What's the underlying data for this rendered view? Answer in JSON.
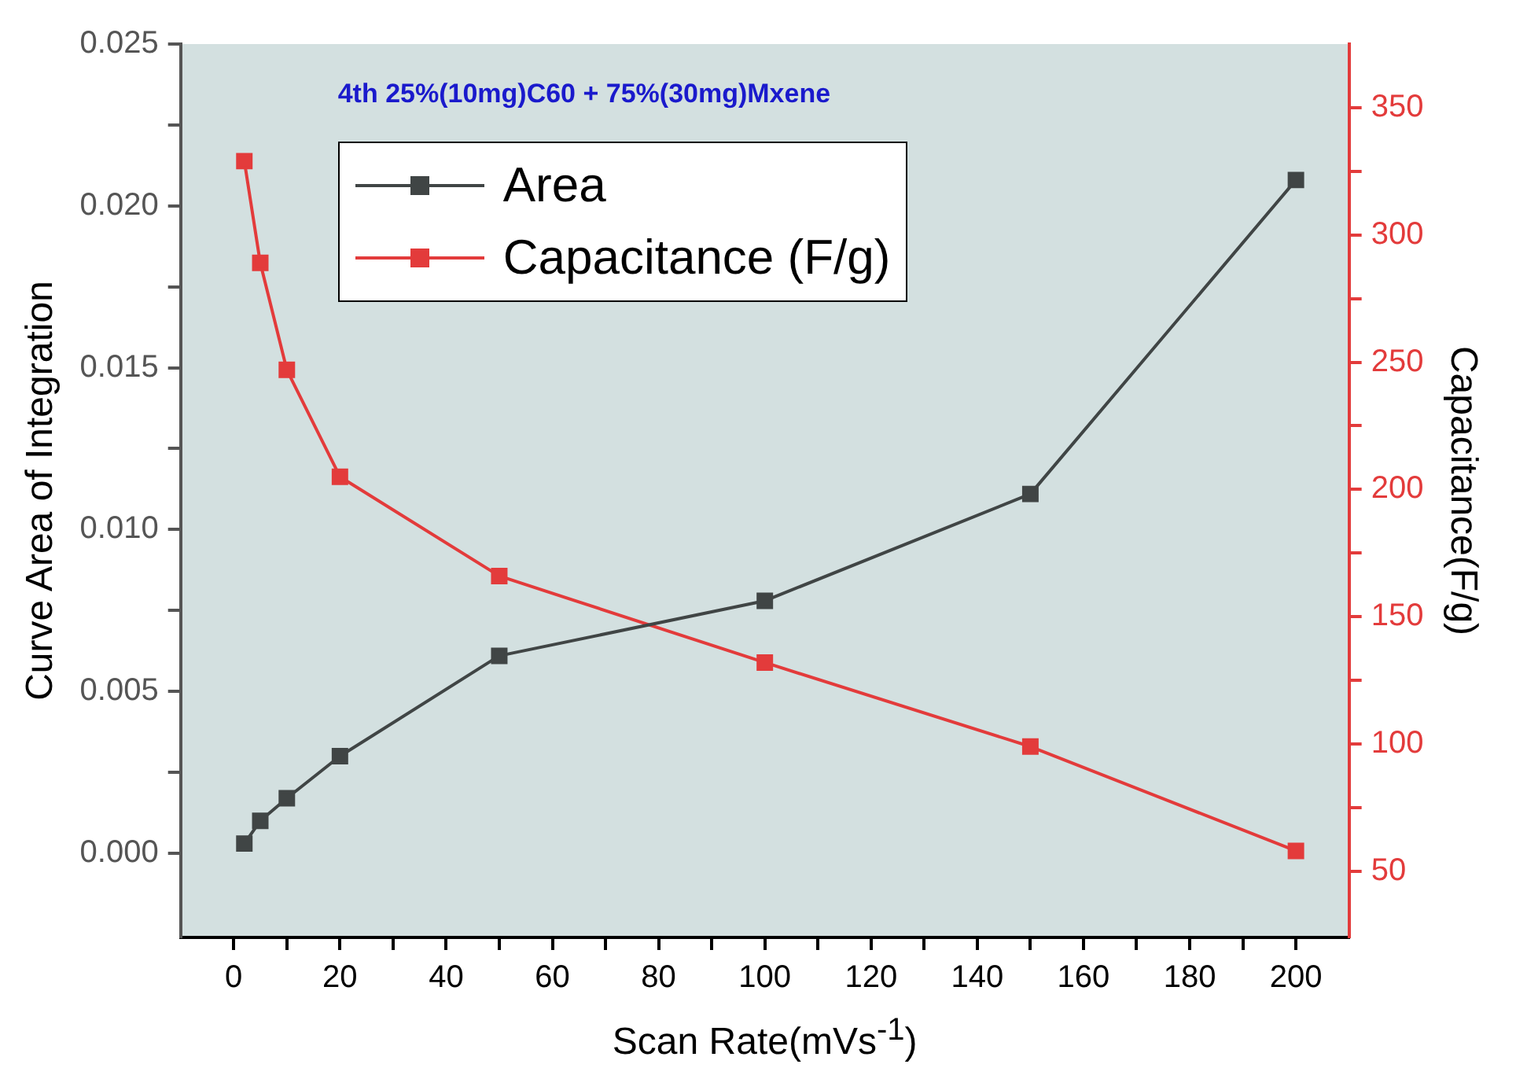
{
  "chart_data": {
    "type": "line",
    "title": "4th 25%(10mg)C60 + 75%(30mg)Mxene",
    "xlabel": "Scan Rate(mVs$^{-1}$)",
    "ylabel": "Curve Area of Integration",
    "y2label": "Capacitance(F/g)",
    "x": [
      2,
      5,
      10,
      20,
      50,
      100,
      150,
      200
    ],
    "series": [
      {
        "name": "Area",
        "color": "#404545",
        "values": [
          0.0003,
          0.001,
          0.0017,
          0.003,
          0.0061,
          0.0078,
          0.0111,
          0.0208
        ]
      },
      {
        "name": "Capacitance (F/g)",
        "color": "#e33b3b",
        "axis": "y2",
        "values": [
          329,
          289,
          247,
          205,
          166,
          132,
          99,
          58
        ]
      }
    ],
    "xlim": [
      -10,
      210
    ],
    "xticks": [
      0,
      {
        "value": 10,
        "label": null
      },
      20,
      {
        "value": 30,
        "label": null
      },
      40,
      {
        "value": 50,
        "label": null
      },
      60,
      {
        "value": 70,
        "label": null
      },
      80,
      {
        "value": 90,
        "label": null
      },
      100,
      {
        "value": 110,
        "label": null
      },
      120,
      {
        "value": 130,
        "label": null
      },
      140,
      {
        "value": 150,
        "label": null
      },
      160,
      {
        "value": 170,
        "label": null
      },
      180,
      {
        "value": 190,
        "label": null
      },
      200
    ],
    "ylim": [
      -0.0026,
      0.025
    ],
    "yticks": [
      {
        "value": 0,
        "label": "0.000"
      },
      {
        "value": 0.0025,
        "label": null
      },
      {
        "value": 0.005,
        "label": "0.005"
      },
      {
        "value": 0.0075,
        "label": null
      },
      {
        "value": 0.01,
        "label": "0.010"
      },
      {
        "value": 0.0125,
        "label": null
      },
      {
        "value": 0.015,
        "label": "0.015"
      },
      {
        "value": 0.0175,
        "label": null
      },
      {
        "value": 0.02,
        "label": "0.020"
      },
      {
        "value": 0.0225,
        "label": null
      },
      {
        "value": 0.025,
        "label": "0.025"
      }
    ],
    "y2lim": [
      24,
      375
    ],
    "y2ticks": [
      50,
      {
        "value": 75,
        "label": null
      },
      100,
      {
        "value": 125,
        "label": null
      },
      150,
      {
        "value": 175,
        "label": null
      },
      200,
      {
        "value": 225,
        "label": null
      },
      250,
      {
        "value": 275,
        "label": null
      },
      300,
      {
        "value": 325,
        "label": null
      },
      350
    ],
    "grid": false,
    "legend": "top left",
    "marker": "square",
    "line_style": "solid"
  }
}
